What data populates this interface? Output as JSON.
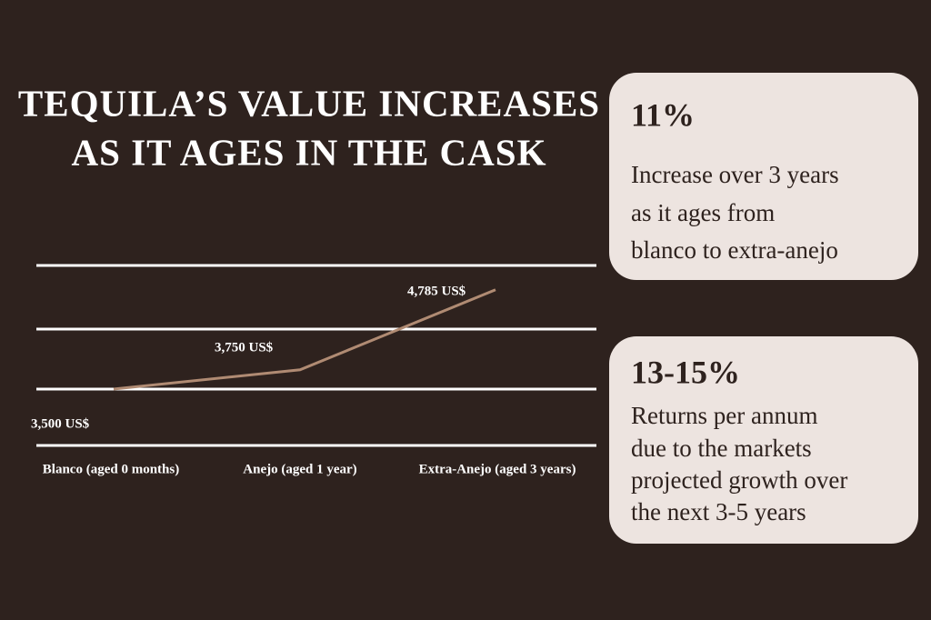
{
  "chart_data": {
    "type": "line",
    "title": [
      "TEQUILA’S VALUE INCREASES",
      "AS IT AGES IN THE CASK"
    ],
    "categories": [
      "Blanco (aged 0 months)",
      "Anejo (aged 1 year)",
      "Extra-Anejo (aged 3 years)"
    ],
    "values": [
      3500,
      3750,
      4785
    ],
    "value_labels": [
      "3,500 US$",
      "3,750 US$",
      "4,785 US$"
    ],
    "color": "#b08b73",
    "ylim": [
      2770,
      5100
    ]
  },
  "cards": [
    {
      "stat": "11%",
      "lines": [
        "Increase over 3 years",
        "as it ages from",
        "blanco to extra-anejo"
      ]
    },
    {
      "stat": "13-15%",
      "lines": [
        "Returns per annum",
        "due to the markets",
        "projected growth over",
        "the next 3-5 years"
      ]
    }
  ]
}
